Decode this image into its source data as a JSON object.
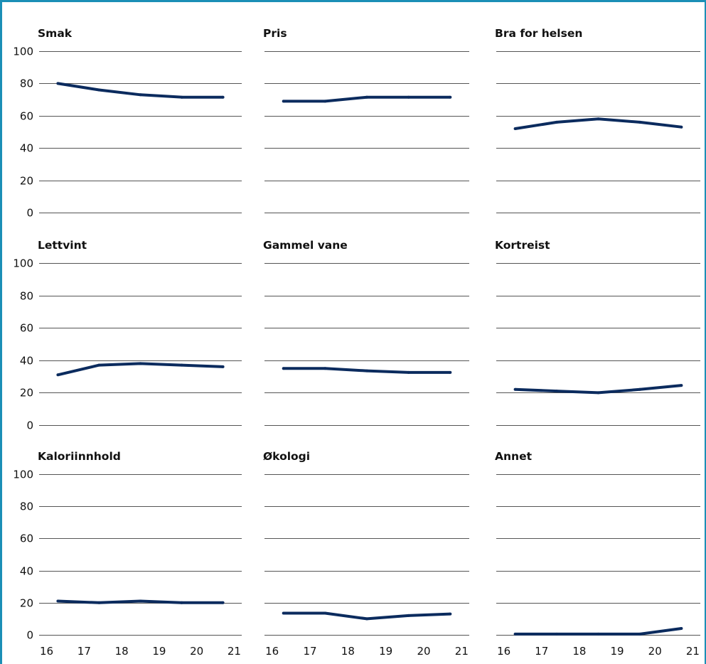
{
  "chart_data": [
    {
      "type": "line",
      "title": "Smak",
      "x": [
        "16",
        "17",
        "18",
        "19",
        "20",
        "21"
      ],
      "ylim": [
        0,
        100
      ],
      "yticks": [
        0,
        20,
        40,
        60,
        80,
        100
      ],
      "series": [
        {
          "x": [
            16.3,
            17.4,
            18.5,
            19.6,
            20.7
          ],
          "values": [
            80,
            76,
            73,
            71.5,
            71.5
          ]
        }
      ]
    },
    {
      "type": "line",
      "title": "Pris",
      "x": [
        "16",
        "17",
        "18",
        "19",
        "20",
        "21"
      ],
      "ylim": [
        0,
        100
      ],
      "yticks": [
        0,
        20,
        40,
        60,
        80,
        100
      ],
      "series": [
        {
          "x": [
            16.3,
            17.4,
            18.5,
            19.6,
            20.7
          ],
          "values": [
            69,
            69,
            71.5,
            71.5,
            71.5
          ]
        }
      ]
    },
    {
      "type": "line",
      "title": "Bra for helsen",
      "x": [
        "16",
        "17",
        "18",
        "19",
        "20",
        "21"
      ],
      "ylim": [
        0,
        100
      ],
      "yticks": [
        0,
        20,
        40,
        60,
        80,
        100
      ],
      "series": [
        {
          "x": [
            16.3,
            17.4,
            18.5,
            19.6,
            20.7
          ],
          "values": [
            52,
            56,
            58,
            56,
            53
          ]
        }
      ]
    },
    {
      "type": "line",
      "title": "Lettvint",
      "x": [
        "16",
        "17",
        "18",
        "19",
        "20",
        "21"
      ],
      "ylim": [
        0,
        100
      ],
      "yticks": [
        0,
        20,
        40,
        60,
        80,
        100
      ],
      "series": [
        {
          "x": [
            16.3,
            17.4,
            18.5,
            19.6,
            20.7
          ],
          "values": [
            31,
            37,
            38,
            37,
            36
          ]
        }
      ]
    },
    {
      "type": "line",
      "title": "Gammel vane",
      "x": [
        "16",
        "17",
        "18",
        "19",
        "20",
        "21"
      ],
      "ylim": [
        0,
        100
      ],
      "yticks": [
        0,
        20,
        40,
        60,
        80,
        100
      ],
      "series": [
        {
          "x": [
            16.3,
            17.4,
            18.5,
            19.6,
            20.7
          ],
          "values": [
            35,
            35,
            33.5,
            32.5,
            32.5
          ]
        }
      ]
    },
    {
      "type": "line",
      "title": "Kortreist",
      "x": [
        "16",
        "17",
        "18",
        "19",
        "20",
        "21"
      ],
      "ylim": [
        0,
        100
      ],
      "yticks": [
        0,
        20,
        40,
        60,
        80,
        100
      ],
      "series": [
        {
          "x": [
            16.3,
            17.4,
            18.5,
            19.6,
            20.7
          ],
          "values": [
            22,
            21,
            20,
            22,
            24.5
          ]
        }
      ]
    },
    {
      "type": "line",
      "title": "Kaloriinnhold",
      "x": [
        "16",
        "17",
        "18",
        "19",
        "20",
        "21"
      ],
      "ylim": [
        0,
        100
      ],
      "yticks": [
        0,
        20,
        40,
        60,
        80,
        100
      ],
      "series": [
        {
          "x": [
            16.3,
            17.4,
            18.5,
            19.6,
            20.7
          ],
          "values": [
            21,
            20,
            21,
            20,
            20
          ]
        }
      ]
    },
    {
      "type": "line",
      "title": "Økologi",
      "x": [
        "16",
        "17",
        "18",
        "19",
        "20",
        "21"
      ],
      "ylim": [
        0,
        100
      ],
      "yticks": [
        0,
        20,
        40,
        60,
        80,
        100
      ],
      "series": [
        {
          "x": [
            16.3,
            17.4,
            18.5,
            19.6,
            20.7
          ],
          "values": [
            13.5,
            13.5,
            10,
            12,
            13
          ]
        }
      ]
    },
    {
      "type": "line",
      "title": "Annet",
      "x": [
        "16",
        "17",
        "18",
        "19",
        "20",
        "21"
      ],
      "ylim": [
        0,
        100
      ],
      "yticks": [
        0,
        20,
        40,
        60,
        80,
        100
      ],
      "series": [
        {
          "x": [
            16.3,
            17.4,
            18.5,
            19.6,
            20.7
          ],
          "values": [
            0.5,
            0.5,
            0.5,
            0.5,
            4
          ]
        }
      ]
    }
  ]
}
